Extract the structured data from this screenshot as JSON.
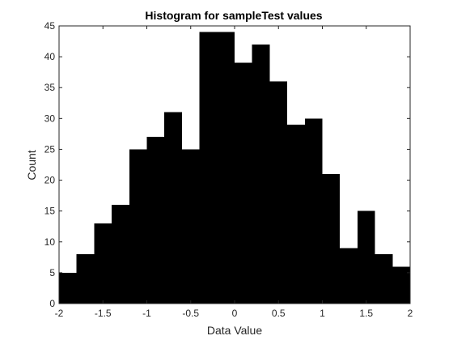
{
  "chart_data": {
    "type": "bar",
    "title": "Histogram for sampleTest values",
    "xlabel": "Data Value",
    "ylabel": "Count",
    "xlim": [
      -2,
      2
    ],
    "ylim": [
      0,
      45
    ],
    "x_ticks": [
      -2,
      -1.5,
      -1,
      -0.5,
      0,
      0.5,
      1,
      1.5,
      2
    ],
    "x_tick_labels": [
      "-2",
      "-1.5",
      "-1",
      "-0.5",
      "0",
      "0.5",
      "1",
      "1.5",
      "2"
    ],
    "y_ticks": [
      0,
      5,
      10,
      15,
      20,
      25,
      30,
      35,
      40,
      45
    ],
    "y_tick_labels": [
      "0",
      "5",
      "10",
      "15",
      "20",
      "25",
      "30",
      "35",
      "40",
      "45"
    ],
    "bin_edges": [
      -2.0,
      -1.8,
      -1.6,
      -1.4,
      -1.2,
      -1.0,
      -0.8,
      -0.6,
      -0.4,
      -0.2,
      0.0,
      0.2,
      0.4,
      0.6,
      0.8,
      1.0,
      1.2,
      1.4,
      1.6,
      1.8,
      2.0
    ],
    "values": [
      5,
      8,
      13,
      16,
      25,
      27,
      31,
      25,
      44,
      44,
      39,
      42,
      36,
      29,
      30,
      21,
      9,
      15,
      8,
      6
    ],
    "bar_color": "#000000",
    "grid": false
  }
}
